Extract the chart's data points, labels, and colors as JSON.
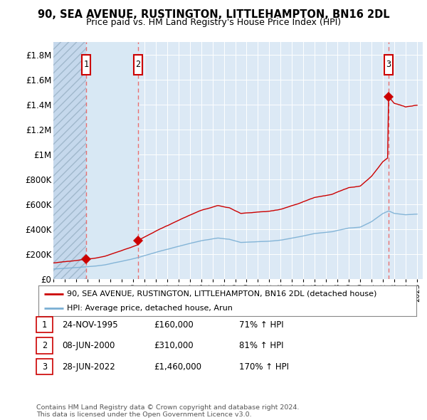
{
  "title": "90, SEA AVENUE, RUSTINGTON, LITTLEHAMPTON, BN16 2DL",
  "subtitle": "Price paid vs. HM Land Registry's House Price Index (HPI)",
  "ylim": [
    0,
    1900000
  ],
  "xlim_start": 1993.0,
  "xlim_end": 2025.5,
  "yticks": [
    0,
    200000,
    400000,
    600000,
    800000,
    1000000,
    1200000,
    1400000,
    1600000,
    1800000
  ],
  "ytick_labels": [
    "£0",
    "£200K",
    "£400K",
    "£600K",
    "£800K",
    "£1M",
    "£1.2M",
    "£1.4M",
    "£1.6M",
    "£1.8M"
  ],
  "sale_dates": [
    1995.9,
    2000.44,
    2022.49
  ],
  "sale_prices": [
    160000,
    310000,
    1460000
  ],
  "sale_labels": [
    "1",
    "2",
    "3"
  ],
  "sale_date_strings": [
    "24-NOV-1995",
    "08-JUN-2000",
    "28-JUN-2022"
  ],
  "sale_price_strings": [
    "£160,000",
    "£310,000",
    "£1,460,000"
  ],
  "sale_hpi_strings": [
    "71% ↑ HPI",
    "81% ↑ HPI",
    "170% ↑ HPI"
  ],
  "legend_line1": "90, SEA AVENUE, RUSTINGTON, LITTLEHAMPTON, BN16 2DL (detached house)",
  "legend_line2": "HPI: Average price, detached house, Arun",
  "footnote": "Contains HM Land Registry data © Crown copyright and database right 2024.\nThis data is licensed under the Open Government Licence v3.0.",
  "hatch_end": 1995.9,
  "second_region_end": 2000.44,
  "background_color": "#ffffff",
  "plot_bg_color": "#dce9f5",
  "hatch_facecolor": "#c5d8ec",
  "second_facecolor": "#dce9f5",
  "grid_color": "#ffffff",
  "red_line_color": "#cc0000",
  "blue_line_color": "#7aafd4",
  "sale_marker_color": "#cc0000",
  "dashed_line_color": "#e87070",
  "box_color": "#cc0000"
}
